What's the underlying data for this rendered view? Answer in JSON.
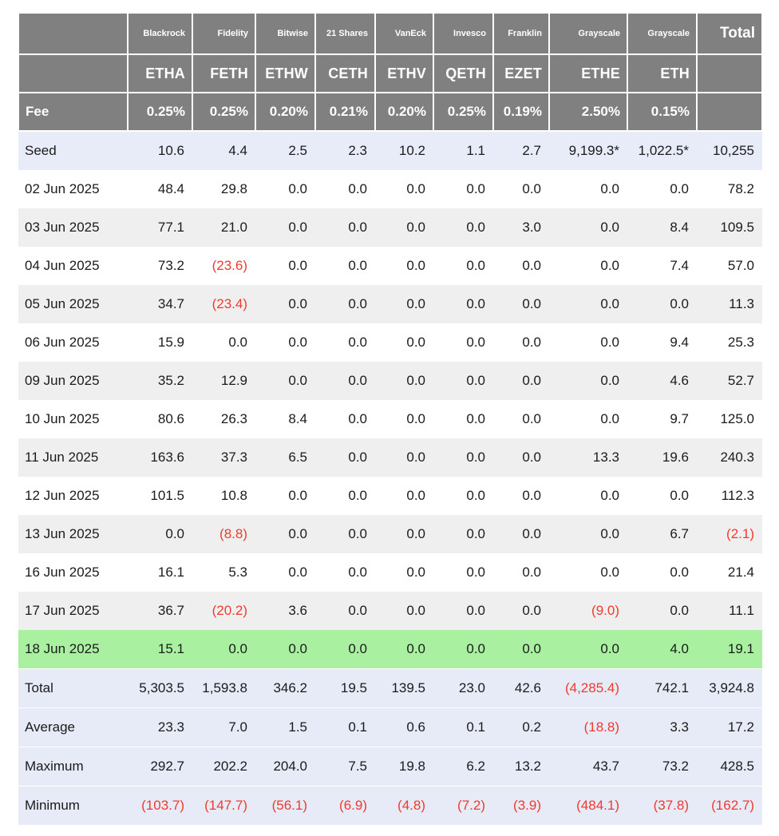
{
  "colors": {
    "header_bg": "#808080",
    "header_text": "#ffffff",
    "stripe_bg": "#efefef",
    "seed_row_bg": "#e8ecf8",
    "summary_row_bg": "#e7eaf7",
    "highlight_green_bg": "#a9f0a1",
    "negative_red": "#ef3b2e"
  },
  "chart_data": {
    "type": "table",
    "corner": {
      "fee_label": "Fee",
      "total_label": "Total"
    },
    "columns": [
      {
        "provider": "Blackrock",
        "ticker": "ETHA",
        "fee": "0.25%"
      },
      {
        "provider": "Fidelity",
        "ticker": "FETH",
        "fee": "0.25%"
      },
      {
        "provider": "Bitwise",
        "ticker": "ETHW",
        "fee": "0.20%"
      },
      {
        "provider": "21 Shares",
        "ticker": "CETH",
        "fee": "0.21%"
      },
      {
        "provider": "VanEck",
        "ticker": "ETHV",
        "fee": "0.20%"
      },
      {
        "provider": "Invesco",
        "ticker": "QETH",
        "fee": "0.25%"
      },
      {
        "provider": "Franklin",
        "ticker": "EZET",
        "fee": "0.19%"
      },
      {
        "provider": "Grayscale",
        "ticker": "ETHE",
        "fee": "2.50%"
      },
      {
        "provider": "Grayscale",
        "ticker": "ETH",
        "fee": "0.15%"
      }
    ],
    "rows": [
      {
        "label": "Seed",
        "kind": "seed",
        "values": [
          "10.6",
          "4.4",
          "2.5",
          "2.3",
          "10.2",
          "1.1",
          "2.7",
          "9,199.3*",
          "1,022.5*",
          "10,255"
        ]
      },
      {
        "label": "02 Jun 2025",
        "kind": "date",
        "values": [
          "48.4",
          "29.8",
          "0.0",
          "0.0",
          "0.0",
          "0.0",
          "0.0",
          "0.0",
          "0.0",
          "78.2"
        ]
      },
      {
        "label": "03 Jun 2025",
        "kind": "date",
        "values": [
          "77.1",
          "21.0",
          "0.0",
          "0.0",
          "0.0",
          "0.0",
          "3.0",
          "0.0",
          "8.4",
          "109.5"
        ]
      },
      {
        "label": "04 Jun 2025",
        "kind": "date",
        "values": [
          "73.2",
          "(23.6)",
          "0.0",
          "0.0",
          "0.0",
          "0.0",
          "0.0",
          "0.0",
          "7.4",
          "57.0"
        ]
      },
      {
        "label": "05 Jun 2025",
        "kind": "date",
        "values": [
          "34.7",
          "(23.4)",
          "0.0",
          "0.0",
          "0.0",
          "0.0",
          "0.0",
          "0.0",
          "0.0",
          "11.3"
        ]
      },
      {
        "label": "06 Jun 2025",
        "kind": "date",
        "values": [
          "15.9",
          "0.0",
          "0.0",
          "0.0",
          "0.0",
          "0.0",
          "0.0",
          "0.0",
          "9.4",
          "25.3"
        ]
      },
      {
        "label": "09 Jun 2025",
        "kind": "date",
        "values": [
          "35.2",
          "12.9",
          "0.0",
          "0.0",
          "0.0",
          "0.0",
          "0.0",
          "0.0",
          "4.6",
          "52.7"
        ]
      },
      {
        "label": "10 Jun 2025",
        "kind": "date",
        "values": [
          "80.6",
          "26.3",
          "8.4",
          "0.0",
          "0.0",
          "0.0",
          "0.0",
          "0.0",
          "9.7",
          "125.0"
        ]
      },
      {
        "label": "11 Jun 2025",
        "kind": "date",
        "values": [
          "163.6",
          "37.3",
          "6.5",
          "0.0",
          "0.0",
          "0.0",
          "0.0",
          "13.3",
          "19.6",
          "240.3"
        ]
      },
      {
        "label": "12 Jun 2025",
        "kind": "date",
        "values": [
          "101.5",
          "10.8",
          "0.0",
          "0.0",
          "0.0",
          "0.0",
          "0.0",
          "0.0",
          "0.0",
          "112.3"
        ]
      },
      {
        "label": "13 Jun 2025",
        "kind": "date",
        "values": [
          "0.0",
          "(8.8)",
          "0.0",
          "0.0",
          "0.0",
          "0.0",
          "0.0",
          "0.0",
          "6.7",
          "(2.1)"
        ]
      },
      {
        "label": "16 Jun 2025",
        "kind": "date",
        "values": [
          "16.1",
          "5.3",
          "0.0",
          "0.0",
          "0.0",
          "0.0",
          "0.0",
          "0.0",
          "0.0",
          "21.4"
        ]
      },
      {
        "label": "17 Jun 2025",
        "kind": "date",
        "values": [
          "36.7",
          "(20.2)",
          "3.6",
          "0.0",
          "0.0",
          "0.0",
          "0.0",
          "(9.0)",
          "0.0",
          "11.1"
        ]
      },
      {
        "label": "18 Jun 2025",
        "kind": "green",
        "values": [
          "15.1",
          "0.0",
          "0.0",
          "0.0",
          "0.0",
          "0.0",
          "0.0",
          "0.0",
          "4.0",
          "19.1"
        ]
      },
      {
        "label": "Total",
        "kind": "summary",
        "values": [
          "5,303.5",
          "1,593.8",
          "346.2",
          "19.5",
          "139.5",
          "23.0",
          "42.6",
          "(4,285.4)",
          "742.1",
          "3,924.8"
        ]
      },
      {
        "label": "Average",
        "kind": "summary",
        "values": [
          "23.3",
          "7.0",
          "1.5",
          "0.1",
          "0.6",
          "0.1",
          "0.2",
          "(18.8)",
          "3.3",
          "17.2"
        ]
      },
      {
        "label": "Maximum",
        "kind": "summary",
        "values": [
          "292.7",
          "202.2",
          "204.0",
          "7.5",
          "19.8",
          "6.2",
          "13.2",
          "43.7",
          "73.2",
          "428.5"
        ]
      },
      {
        "label": "Minimum",
        "kind": "summary",
        "values": [
          "(103.7)",
          "(147.7)",
          "(56.1)",
          "(6.9)",
          "(4.8)",
          "(7.2)",
          "(3.9)",
          "(484.1)",
          "(37.8)",
          "(162.7)"
        ]
      }
    ]
  }
}
